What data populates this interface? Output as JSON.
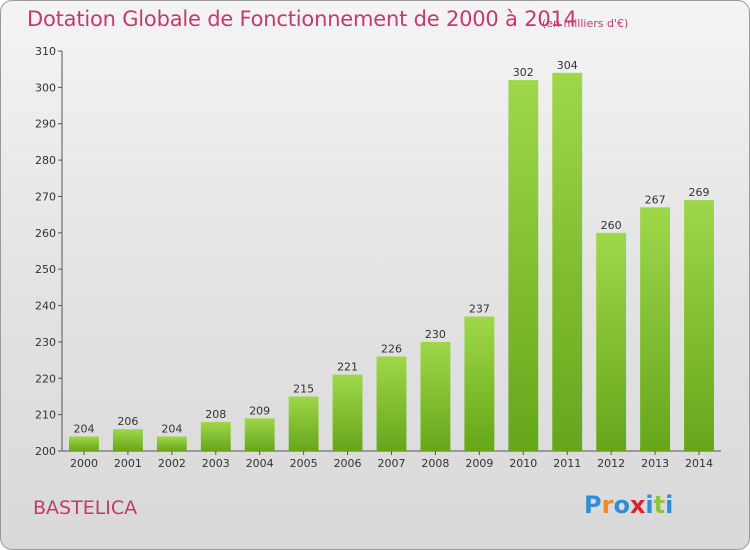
{
  "chart_data": {
    "type": "bar",
    "title": "Dotation Globale de Fonctionnement de 2000 à 2014",
    "unit_note": "(en milliers d'€)",
    "categories": [
      "2000",
      "2001",
      "2002",
      "2003",
      "2004",
      "2005",
      "2006",
      "2007",
      "2008",
      "2009",
      "2010",
      "2011",
      "2012",
      "2013",
      "2014"
    ],
    "values": [
      204,
      206,
      204,
      208,
      209,
      215,
      221,
      226,
      230,
      237,
      302,
      304,
      260,
      267,
      269
    ],
    "value_labels": [
      "204",
      "206",
      "204",
      "208",
      "209",
      "215",
      "221",
      "226",
      "230",
      "237",
      "302",
      "304",
      "260",
      "267",
      "269"
    ],
    "ylim": [
      200,
      310
    ],
    "yticks": [
      200,
      210,
      220,
      230,
      240,
      250,
      260,
      270,
      280,
      290,
      300,
      310
    ],
    "ytick_labels": [
      "200",
      "210",
      "220",
      "230",
      "240",
      "250",
      "260",
      "270",
      "280",
      "290",
      "300",
      "310"
    ],
    "grid": false,
    "bar_color": "#7bbf2e"
  },
  "footer": {
    "place_name": "BASTELICA"
  },
  "logo": {
    "text": "Proxiti",
    "letters": [
      "P",
      "r",
      "o",
      "x",
      "i",
      "t",
      "i"
    ],
    "colors": [
      "#2f8fd6",
      "#f08a1c",
      "#2f8fd6",
      "#d8252b",
      "#2f8fd6",
      "#8cc63f",
      "#2f8fd6"
    ]
  }
}
